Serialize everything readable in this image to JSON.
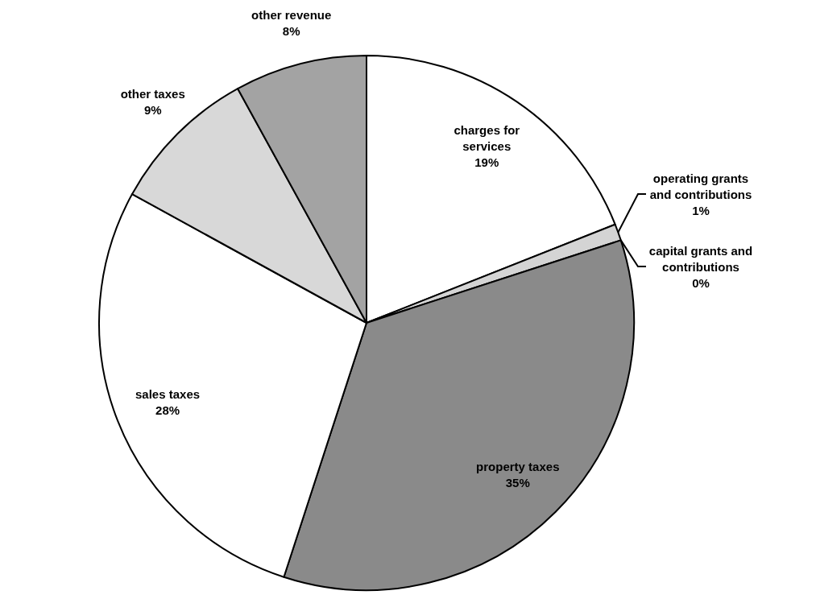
{
  "chart_data": {
    "type": "pie",
    "categories": [
      "charges for services",
      "operating grants and contributions",
      "capital grants and contributions",
      "property taxes",
      "sales taxes",
      "other taxes",
      "other revenue"
    ],
    "values": [
      19,
      1,
      0,
      35,
      28,
      9,
      8
    ],
    "value_labels": [
      "19%",
      "1%",
      "0%",
      "35%",
      "28%",
      "9%",
      "8%"
    ],
    "colors": [
      "#ffffff",
      "#d4d4d4",
      null,
      "#8a8a8a",
      "#ffffff",
      "#d8d8d8",
      "#a3a3a3"
    ]
  }
}
